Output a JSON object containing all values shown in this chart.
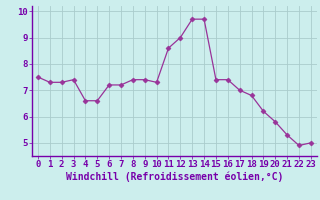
{
  "x": [
    0,
    1,
    2,
    3,
    4,
    5,
    6,
    7,
    8,
    9,
    10,
    11,
    12,
    13,
    14,
    15,
    16,
    17,
    18,
    19,
    20,
    21,
    22,
    23
  ],
  "y": [
    7.5,
    7.3,
    7.3,
    7.4,
    6.6,
    6.6,
    7.2,
    7.2,
    7.4,
    7.4,
    7.3,
    8.6,
    9.0,
    9.7,
    9.7,
    7.4,
    7.4,
    7.0,
    6.8,
    6.2,
    5.8,
    5.3,
    4.9,
    5.0
  ],
  "line_color": "#993399",
  "marker": "D",
  "marker_size": 2.5,
  "bg_color": "#cceeed",
  "grid_color": "#aacccc",
  "axis_color": "#7700aa",
  "xlabel": "Windchill (Refroidissement éolien,°C)",
  "xlabel_fontsize": 7,
  "tick_fontsize": 6.5,
  "xlim": [
    -0.5,
    23.5
  ],
  "ylim": [
    4.5,
    10.2
  ],
  "yticks": [
    5,
    6,
    7,
    8,
    9,
    10
  ],
  "xticks": [
    0,
    1,
    2,
    3,
    4,
    5,
    6,
    7,
    8,
    9,
    10,
    11,
    12,
    13,
    14,
    15,
    16,
    17,
    18,
    19,
    20,
    21,
    22,
    23
  ]
}
